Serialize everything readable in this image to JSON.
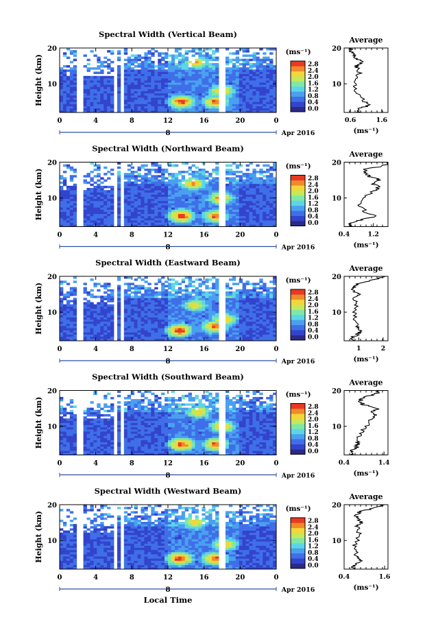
{
  "figure": {
    "xlabel": "Local Time",
    "colorbar_unit": "(ms⁻¹)",
    "colorbar_ticks": [
      "0.0",
      "0.4",
      "0.8",
      "1.2",
      "1.6",
      "2.0",
      "2.4",
      "2.8"
    ],
    "colorbar_colors": [
      "#2a2a8a",
      "#3344cc",
      "#3f6fe8",
      "#4aa0f0",
      "#5cd6e6",
      "#7fe8a6",
      "#c6e85a",
      "#f2d63a",
      "#f08a2a",
      "#e83a22"
    ],
    "average_title": "Average",
    "average_xunit": "(ms⁻¹)",
    "date_label": "Apr 2016",
    "date_day": "8",
    "x_ticks": [
      "0",
      "4",
      "8",
      "12",
      "16",
      "20",
      "0"
    ],
    "ylabel": "Height (km)",
    "y_ticks": [
      "20",
      "10"
    ]
  },
  "chart_data": [
    {
      "type": "heatmap",
      "title": "Spectral Width (Vertical Beam)",
      "x_range": [
        0,
        24
      ],
      "y_range": [
        2,
        20
      ],
      "color_range": [
        0.0,
        2.8
      ],
      "gaps_hours": [
        [
          1.7,
          2.6
        ],
        [
          5.9,
          6.2
        ],
        [
          6.6,
          7.1
        ],
        [
          17.6,
          18.2
        ]
      ],
      "hotspots": [
        {
          "x": 13.5,
          "y": 5,
          "v": 2.8
        },
        {
          "x": 17.3,
          "y": 5,
          "v": 2.6
        },
        {
          "x": 18.0,
          "y": 8,
          "v": 2.4
        },
        {
          "x": 15.2,
          "y": 16,
          "v": 2.2
        }
      ],
      "average": {
        "xticks": [
          "0.6",
          "1.6"
        ],
        "xrange": [
          0.4,
          1.8
        ],
        "profile": [
          [
            2,
            0.9
          ],
          [
            3,
            0.85
          ],
          [
            4,
            1.2
          ],
          [
            5,
            1.05
          ],
          [
            6,
            0.95
          ],
          [
            8,
            0.8
          ],
          [
            10,
            0.75
          ],
          [
            12,
            0.85
          ],
          [
            14,
            0.9
          ],
          [
            15,
            0.78
          ],
          [
            16,
            0.95
          ],
          [
            17,
            0.8
          ],
          [
            18,
            0.7
          ],
          [
            19,
            0.65
          ],
          [
            20,
            0.6
          ]
        ]
      }
    },
    {
      "type": "heatmap",
      "title": "Spectral Width (Northward Beam)",
      "x_range": [
        0,
        24
      ],
      "y_range": [
        2,
        20
      ],
      "color_range": [
        0.0,
        2.8
      ],
      "gaps_hours": [
        [
          1.7,
          2.6
        ],
        [
          5.9,
          6.2
        ],
        [
          6.6,
          7.1
        ],
        [
          17.6,
          18.2
        ]
      ],
      "hotspots": [
        {
          "x": 13.5,
          "y": 5,
          "v": 2.8
        },
        {
          "x": 17.3,
          "y": 5,
          "v": 2.6
        },
        {
          "x": 17.8,
          "y": 10,
          "v": 2.4
        },
        {
          "x": 14.8,
          "y": 14,
          "v": 2.4
        }
      ],
      "average": {
        "xticks": [
          "0.4",
          "1.2"
        ],
        "xrange": [
          0.4,
          1.6
        ],
        "profile": [
          [
            2,
            0.6
          ],
          [
            3,
            0.55
          ],
          [
            4,
            0.9
          ],
          [
            5,
            1.3
          ],
          [
            6,
            1.0
          ],
          [
            8,
            0.8
          ],
          [
            10,
            0.95
          ],
          [
            12,
            1.2
          ],
          [
            13,
            1.35
          ],
          [
            14,
            1.2
          ],
          [
            15,
            1.4
          ],
          [
            16,
            1.1
          ],
          [
            17,
            1.0
          ],
          [
            18,
            0.95
          ],
          [
            19,
            1.5
          ],
          [
            20,
            1.6
          ]
        ]
      }
    },
    {
      "type": "heatmap",
      "title": "Spectral Width (Eastward Beam)",
      "x_range": [
        0,
        24
      ],
      "y_range": [
        2,
        20
      ],
      "color_range": [
        0.0,
        2.8
      ],
      "gaps_hours": [
        [
          1.7,
          2.6
        ],
        [
          5.9,
          6.2
        ],
        [
          6.6,
          7.1
        ],
        [
          17.6,
          18.2
        ]
      ],
      "hotspots": [
        {
          "x": 13.3,
          "y": 5,
          "v": 2.8
        },
        {
          "x": 17.2,
          "y": 6,
          "v": 2.6
        },
        {
          "x": 18.2,
          "y": 8,
          "v": 2.4
        },
        {
          "x": 15.0,
          "y": 12,
          "v": 2.2
        }
      ],
      "average": {
        "xticks": [
          "1",
          "2"
        ],
        "xrange": [
          0.4,
          2.2
        ],
        "profile": [
          [
            2,
            0.8
          ],
          [
            3,
            0.75
          ],
          [
            4,
            1.0
          ],
          [
            5,
            1.1
          ],
          [
            6,
            0.95
          ],
          [
            8,
            0.8
          ],
          [
            10,
            0.85
          ],
          [
            12,
            0.9
          ],
          [
            14,
            0.85
          ],
          [
            15,
            1.0
          ],
          [
            16,
            0.75
          ],
          [
            17,
            0.8
          ],
          [
            18,
            0.9
          ],
          [
            19,
            1.6
          ],
          [
            20,
            2.1
          ]
        ]
      }
    },
    {
      "type": "heatmap",
      "title": "Spectral Width (Southward Beam)",
      "x_range": [
        0,
        24
      ],
      "y_range": [
        2,
        20
      ],
      "color_range": [
        0.0,
        2.8
      ],
      "gaps_hours": [
        [
          1.7,
          2.6
        ],
        [
          5.9,
          6.2
        ],
        [
          6.6,
          7.1
        ],
        [
          17.6,
          18.2
        ]
      ],
      "hotspots": [
        {
          "x": 13.5,
          "y": 5,
          "v": 2.8
        },
        {
          "x": 17.3,
          "y": 5,
          "v": 2.6
        },
        {
          "x": 18.0,
          "y": 10,
          "v": 2.4
        },
        {
          "x": 15.4,
          "y": 14,
          "v": 2.2
        }
      ],
      "average": {
        "xticks": [
          "0.4",
          "1.4"
        ],
        "xrange": [
          0.4,
          1.5
        ],
        "profile": [
          [
            2,
            0.6
          ],
          [
            3,
            0.55
          ],
          [
            4,
            0.7
          ],
          [
            5,
            0.75
          ],
          [
            6,
            0.7
          ],
          [
            8,
            0.8
          ],
          [
            10,
            0.95
          ],
          [
            12,
            1.05
          ],
          [
            13,
            1.2
          ],
          [
            14,
            1.1
          ],
          [
            15,
            1.25
          ],
          [
            16,
            0.9
          ],
          [
            17,
            0.8
          ],
          [
            18,
            0.85
          ],
          [
            19,
            1.2
          ],
          [
            20,
            1.3
          ]
        ]
      }
    },
    {
      "type": "heatmap",
      "title": "Spectral Width (Westward Beam)",
      "x_range": [
        0,
        24
      ],
      "y_range": [
        2,
        20
      ],
      "color_range": [
        0.0,
        2.8
      ],
      "gaps_hours": [
        [
          1.7,
          2.6
        ],
        [
          5.9,
          6.2
        ],
        [
          6.6,
          7.1
        ],
        [
          17.6,
          18.2
        ]
      ],
      "hotspots": [
        {
          "x": 13.3,
          "y": 5,
          "v": 2.8
        },
        {
          "x": 17.2,
          "y": 5,
          "v": 2.6
        },
        {
          "x": 18.3,
          "y": 9,
          "v": 2.4
        },
        {
          "x": 15.0,
          "y": 15,
          "v": 2.2
        }
      ],
      "average": {
        "xticks": [
          "0.4",
          "1.6"
        ],
        "xrange": [
          0.4,
          1.7
        ],
        "profile": [
          [
            2,
            0.7
          ],
          [
            3,
            0.65
          ],
          [
            4,
            0.9
          ],
          [
            5,
            0.8
          ],
          [
            6,
            0.75
          ],
          [
            8,
            0.7
          ],
          [
            10,
            0.8
          ],
          [
            12,
            0.85
          ],
          [
            14,
            0.8
          ],
          [
            15,
            0.9
          ],
          [
            16,
            0.8
          ],
          [
            17,
            0.75
          ],
          [
            18,
            0.85
          ],
          [
            19,
            1.3
          ],
          [
            20,
            1.6
          ]
        ]
      }
    }
  ]
}
